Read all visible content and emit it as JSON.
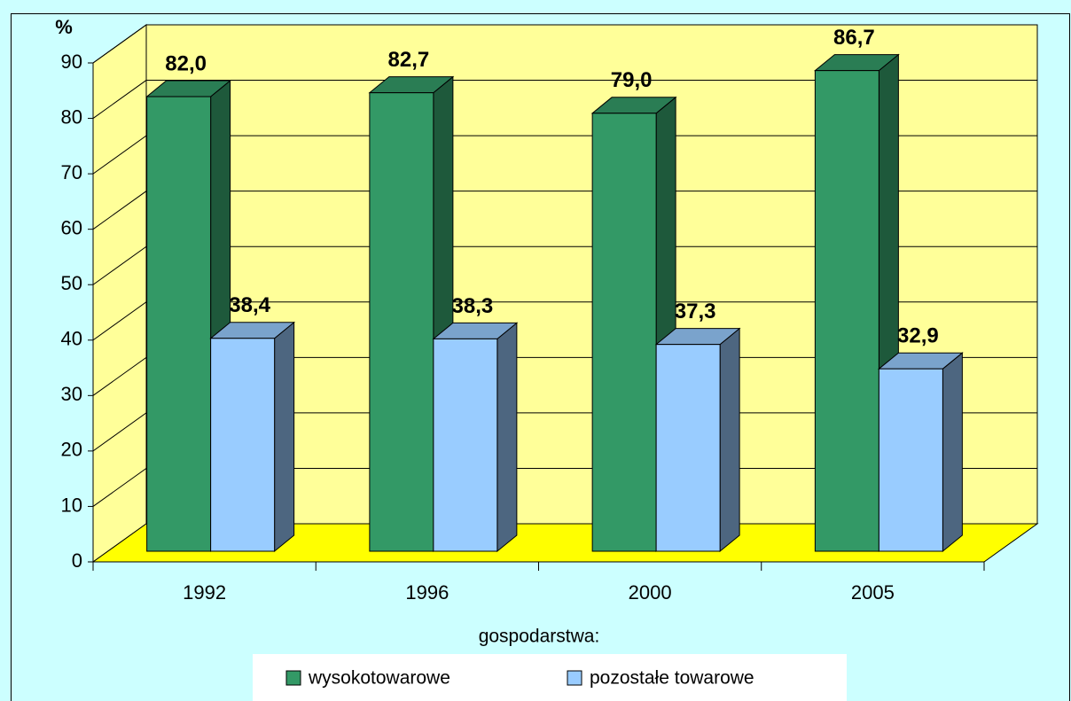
{
  "chart_data": {
    "type": "bar3d",
    "y_label": "%",
    "x_label": "gospodarstwa:",
    "categories": [
      "1992",
      "1996",
      "2000",
      "2005"
    ],
    "series": [
      {
        "name": "wysokotowarowe",
        "color": "#339966",
        "values": [
          82.0,
          82.7,
          79.0,
          86.7
        ],
        "value_labels": [
          "82,0",
          "82,7",
          "79,0",
          "86,7"
        ]
      },
      {
        "name": "pozostałe towarowe",
        "color": "#99ccff",
        "values": [
          38.4,
          38.3,
          37.3,
          32.9
        ],
        "value_labels": [
          "38,4",
          "38,3",
          "37,3",
          "32,9"
        ]
      }
    ],
    "ylim": [
      0,
      90
    ],
    "yticks": [
      0,
      10,
      20,
      30,
      40,
      50,
      60,
      70,
      80,
      90
    ],
    "grid": true
  }
}
